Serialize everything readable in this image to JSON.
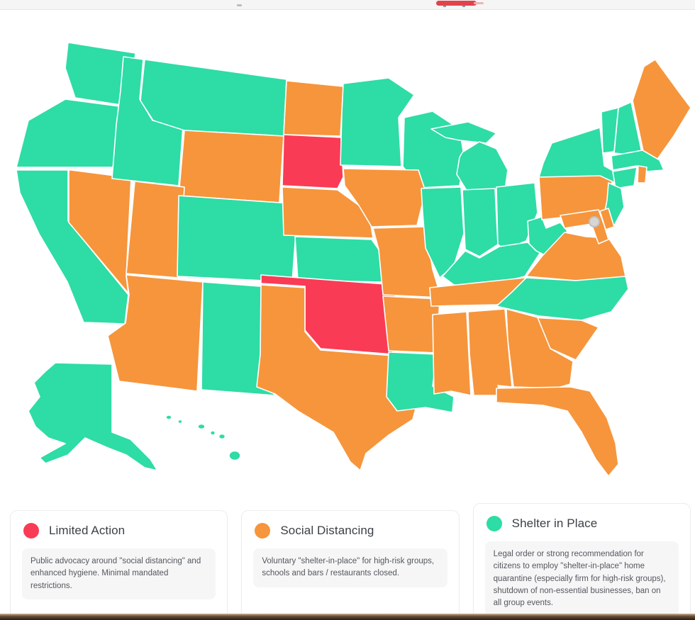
{
  "top_bar": {
    "remnant_button_color": "#e2434b"
  },
  "map": {
    "type": "choropleth",
    "region": "United States state-level COVID-19 response levels",
    "dc_marker": {
      "label": "District of Columbia",
      "color": "#d6d6d6"
    },
    "categories": {
      "limited": {
        "label": "Limited Action",
        "color": "#FA3B55",
        "description": "Public advocacy around \"social distancing\" and enhanced hygiene. Minimal mandated restrictions."
      },
      "social": {
        "label": "Social Distancing",
        "color": "#F6953C",
        "description": "Voluntary \"shelter-in-place\" for high-risk groups, schools and bars / restaurants closed."
      },
      "shelter": {
        "label": "Shelter in Place",
        "color": "#2EDCA5",
        "description": "Legal order or strong recommendation for citizens to employ \"shelter-in-place\" home quarantine (especially firm for high-risk groups), shutdown of non-essential businesses, ban on all group events."
      }
    },
    "states": [
      {
        "id": "WA",
        "name": "Washington",
        "category": "shelter"
      },
      {
        "id": "OR",
        "name": "Oregon",
        "category": "shelter"
      },
      {
        "id": "CA",
        "name": "California",
        "category": "shelter"
      },
      {
        "id": "NV",
        "name": "Nevada",
        "category": "social"
      },
      {
        "id": "ID",
        "name": "Idaho",
        "category": "shelter"
      },
      {
        "id": "MT",
        "name": "Montana",
        "category": "shelter"
      },
      {
        "id": "WY",
        "name": "Wyoming",
        "category": "social"
      },
      {
        "id": "UT",
        "name": "Utah",
        "category": "social"
      },
      {
        "id": "AZ",
        "name": "Arizona",
        "category": "social"
      },
      {
        "id": "NM",
        "name": "New Mexico",
        "category": "shelter"
      },
      {
        "id": "CO",
        "name": "Colorado",
        "category": "shelter"
      },
      {
        "id": "ND",
        "name": "North Dakota",
        "category": "social"
      },
      {
        "id": "SD",
        "name": "South Dakota",
        "category": "limited"
      },
      {
        "id": "NE",
        "name": "Nebraska",
        "category": "social"
      },
      {
        "id": "KS",
        "name": "Kansas",
        "category": "shelter"
      },
      {
        "id": "OK",
        "name": "Oklahoma",
        "category": "limited"
      },
      {
        "id": "TX",
        "name": "Texas",
        "category": "social"
      },
      {
        "id": "MN",
        "name": "Minnesota",
        "category": "shelter"
      },
      {
        "id": "IA",
        "name": "Iowa",
        "category": "social"
      },
      {
        "id": "MO",
        "name": "Missouri",
        "category": "social"
      },
      {
        "id": "AR",
        "name": "Arkansas",
        "category": "social"
      },
      {
        "id": "LA",
        "name": "Louisiana",
        "category": "shelter"
      },
      {
        "id": "WI",
        "name": "Wisconsin",
        "category": "shelter"
      },
      {
        "id": "IL",
        "name": "Illinois",
        "category": "shelter"
      },
      {
        "id": "MI",
        "name": "Michigan",
        "category": "shelter"
      },
      {
        "id": "IN",
        "name": "Indiana",
        "category": "shelter"
      },
      {
        "id": "OH",
        "name": "Ohio",
        "category": "shelter"
      },
      {
        "id": "KY",
        "name": "Kentucky",
        "category": "shelter"
      },
      {
        "id": "TN",
        "name": "Tennessee",
        "category": "social"
      },
      {
        "id": "MS",
        "name": "Mississippi",
        "category": "social"
      },
      {
        "id": "AL",
        "name": "Alabama",
        "category": "social"
      },
      {
        "id": "GA",
        "name": "Georgia",
        "category": "social"
      },
      {
        "id": "FL",
        "name": "Florida",
        "category": "social"
      },
      {
        "id": "SC",
        "name": "South Carolina",
        "category": "social"
      },
      {
        "id": "NC",
        "name": "North Carolina",
        "category": "shelter"
      },
      {
        "id": "VA",
        "name": "Virginia",
        "category": "social"
      },
      {
        "id": "WV",
        "name": "West Virginia",
        "category": "shelter"
      },
      {
        "id": "MD",
        "name": "Maryland",
        "category": "social"
      },
      {
        "id": "DE",
        "name": "Delaware",
        "category": "social"
      },
      {
        "id": "PA",
        "name": "Pennsylvania",
        "category": "social"
      },
      {
        "id": "NJ",
        "name": "New Jersey",
        "category": "shelter"
      },
      {
        "id": "NY",
        "name": "New York",
        "category": "shelter"
      },
      {
        "id": "CT",
        "name": "Connecticut",
        "category": "shelter"
      },
      {
        "id": "RI",
        "name": "Rhode Island",
        "category": "social"
      },
      {
        "id": "MA",
        "name": "Massachusetts",
        "category": "shelter"
      },
      {
        "id": "VT",
        "name": "Vermont",
        "category": "shelter"
      },
      {
        "id": "NH",
        "name": "New Hampshire",
        "category": "shelter"
      },
      {
        "id": "ME",
        "name": "Maine",
        "category": "social"
      },
      {
        "id": "AK",
        "name": "Alaska",
        "category": "shelter"
      },
      {
        "id": "HI",
        "name": "Hawaii",
        "category": "shelter"
      }
    ]
  },
  "legend": {
    "cards": [
      "limited",
      "social",
      "shelter"
    ]
  }
}
